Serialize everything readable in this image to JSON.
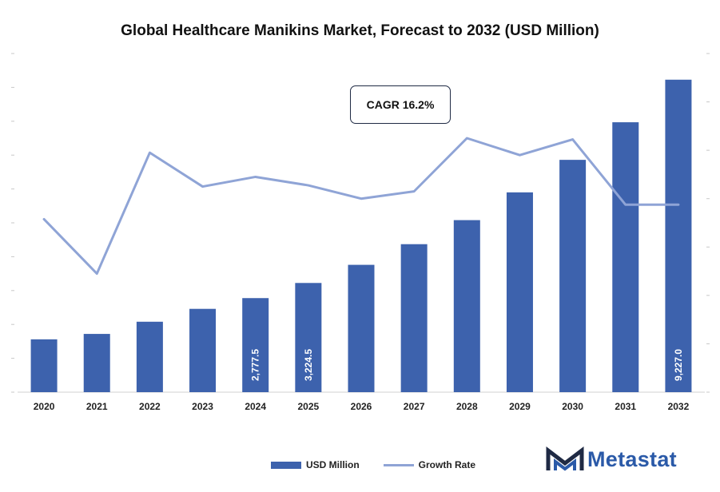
{
  "chart_data": {
    "type": "bar",
    "title": "Global Healthcare Manikins Market, Forecast to 2032 (USD Million)",
    "categories": [
      "2020",
      "2021",
      "2022",
      "2023",
      "2024",
      "2025",
      "2026",
      "2027",
      "2028",
      "2029",
      "2030",
      "2031",
      "2032"
    ],
    "series": [
      {
        "name": "USD Million",
        "type": "bar",
        "color": "#3d62ad",
        "values": [
          1560,
          1720,
          2080,
          2460,
          2777.5,
          3224.5,
          3760,
          4370,
          5080,
          5900,
          6860,
          7970,
          9227.0
        ]
      },
      {
        "name": "Growth Rate",
        "type": "line",
        "color": "#8fa4d6",
        "values": [
          14.3,
          9.8,
          19.8,
          17.0,
          17.8,
          17.1,
          16.0,
          16.6,
          21.0,
          19.6,
          20.9,
          15.5,
          15.5
        ]
      }
    ],
    "data_labels": {
      "2024": "2,777.5",
      "2025": "3,224.5",
      "2032": "9,227.0"
    },
    "annotation": "CAGR 16.2%",
    "ylim": [
      0,
      10000
    ],
    "y2lim": [
      0,
      28
    ],
    "grid": false,
    "legend_position": "bottom"
  },
  "legend": {
    "bar_label": "USD Million",
    "line_label": "Growth Rate"
  },
  "logo": {
    "text": "Metastat"
  },
  "colors": {
    "bar": "#3d62ad",
    "line": "#8fa4d6",
    "logo": "#2b5aa8"
  }
}
